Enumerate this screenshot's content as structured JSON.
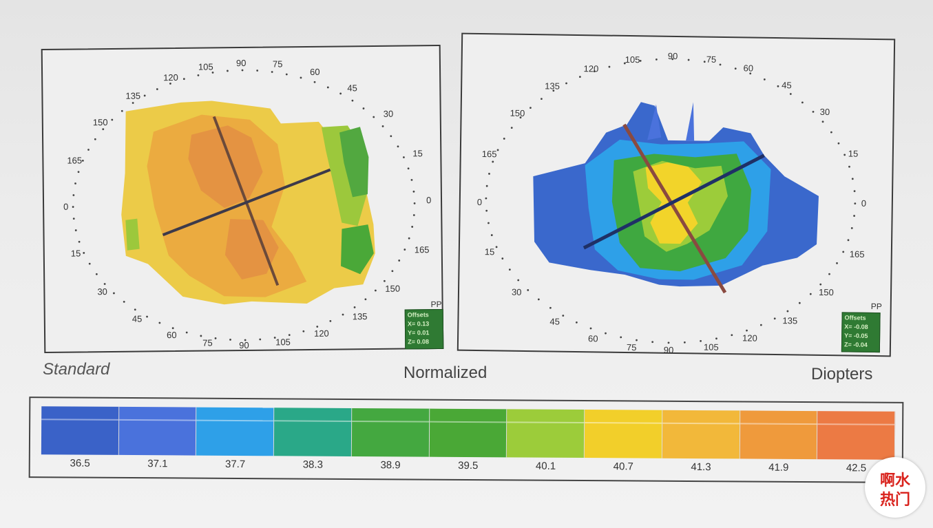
{
  "standard_map": {
    "pp": "PP",
    "offsets": {
      "title": "Offsets",
      "x": "X= 0.13",
      "y": "Y= 0.01",
      "z": "Z= 0.08"
    },
    "labels": {
      "a90t": "90",
      "a75t": "75",
      "a105t": "105",
      "a60t": "60",
      "a120t": "120",
      "a45t": "45",
      "a135t": "135",
      "a30r": "30",
      "a150l": "150",
      "a15r": "15",
      "a165l": "165",
      "a0l": "0",
      "a0r": "0",
      "a15l": "15",
      "a165r": "165",
      "a30l": "30",
      "a150r": "150",
      "a45l": "45",
      "a135b": "135",
      "a60b": "60",
      "a120b": "120",
      "a75b": "75",
      "a105b": "105",
      "a90b": "90"
    }
  },
  "diopter_map": {
    "pp": "PP",
    "offsets": {
      "title": "Offsets",
      "x": "X= -0.08",
      "y": "Y= -0.05",
      "z": "Z= -0.04"
    },
    "labels": {
      "a90t": "90",
      "a75t": "75",
      "a105t": "105",
      "a60t": "60",
      "a120t": "120",
      "a45t": "45",
      "a135t": "135",
      "a30r": "30",
      "a150l": "150",
      "a15r": "15",
      "a165l": "165",
      "a0l": "0",
      "a0r": "0",
      "a15l": "15",
      "a165r": "165",
      "a30l": "30",
      "a150r": "150",
      "a45l": "45",
      "a135b": "135",
      "a60b": "60",
      "a120b": "120",
      "a75b": "75",
      "a105b": "105",
      "a90b": "90"
    }
  },
  "captions": {
    "standard": "Standard",
    "normalized": "Normalized",
    "diopters": "Diopters"
  },
  "color_scale": {
    "values": [
      "36.5",
      "37.1",
      "37.7",
      "38.3",
      "38.9",
      "39.5",
      "40.1",
      "40.7",
      "41.3",
      "41.9",
      "42.5"
    ],
    "colors": [
      "#3a62c8",
      "#4a72dc",
      "#2ea0e8",
      "#2aa888",
      "#44a840",
      "#4aa836",
      "#9ccc3a",
      "#f2cf2a",
      "#f2b83a",
      "#ef9a3c",
      "#ec7a44"
    ]
  },
  "watermark": {
    "line1": "啊水",
    "line2": "热门"
  }
}
